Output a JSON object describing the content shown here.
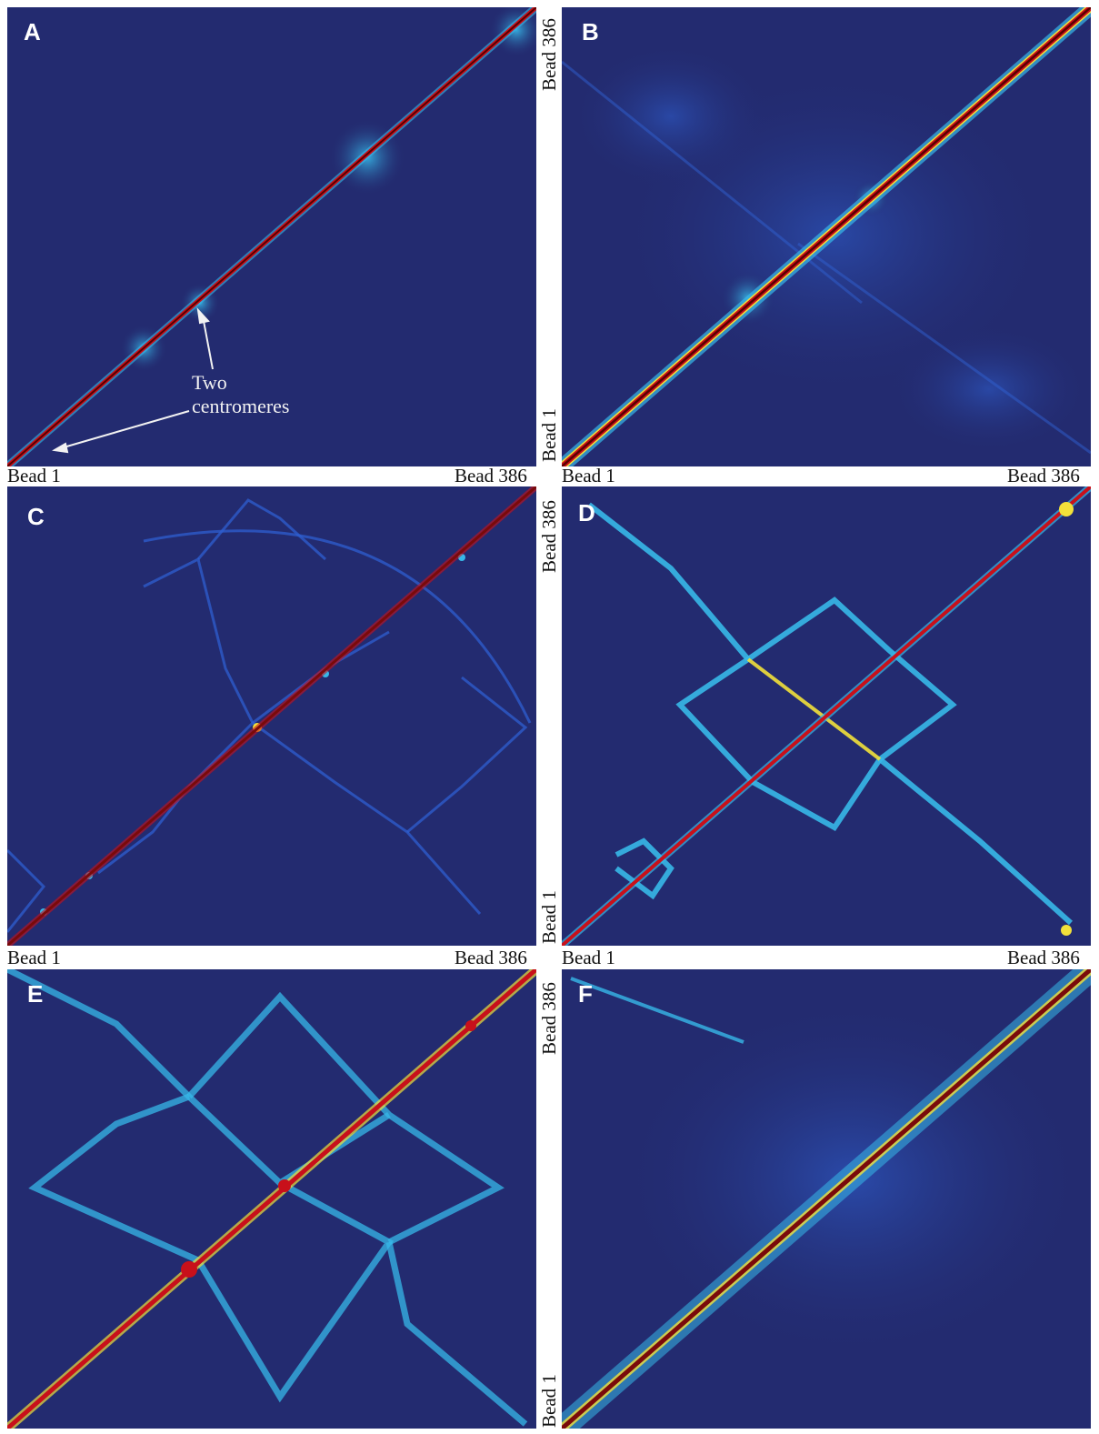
{
  "chart_data": [
    {
      "type": "heatmap",
      "panel": "A",
      "xlabel_start": "Bead 1",
      "xlabel_end": "Bead 386",
      "ylabel_start": "",
      "ylabel_end": "",
      "annotation": [
        "Two",
        "centromeres"
      ],
      "colorscale": [
        "#232b70",
        "#2f5fd0",
        "#37b8e8",
        "#f2e13a",
        "#c8101a",
        "#5a0000"
      ]
    },
    {
      "type": "heatmap",
      "panel": "B",
      "xlabel_start": "Bead 1",
      "xlabel_end": "Bead 386",
      "ylabel_start": "Bead 1",
      "ylabel_end": "Bead 386"
    },
    {
      "type": "heatmap",
      "panel": "C",
      "xlabel_start": "Bead 1",
      "xlabel_end": "Bead 386",
      "ylabel_start": "",
      "ylabel_end": ""
    },
    {
      "type": "heatmap",
      "panel": "D",
      "xlabel_start": "Bead 1",
      "xlabel_end": "Bead 386",
      "ylabel_start": "Bead 1",
      "ylabel_end": "Bead 386"
    },
    {
      "type": "heatmap",
      "panel": "E",
      "xlabel_start": "",
      "xlabel_end": "",
      "ylabel_start": "",
      "ylabel_end": ""
    },
    {
      "type": "heatmap",
      "panel": "F",
      "xlabel_start": "",
      "xlabel_end": "",
      "ylabel_start": "Bead 1",
      "ylabel_end": "Bead 386"
    }
  ],
  "panels": {
    "a": {
      "letter": "A",
      "bead_start": "Bead 1",
      "bead_end": "Bead 386",
      "annotation_line1": "Two",
      "annotation_line2": "centromeres"
    },
    "b": {
      "letter": "B",
      "bead_start": "Bead 1",
      "bead_end": "Bead 386"
    },
    "c": {
      "letter": "C",
      "bead_start": "Bead 1",
      "bead_end": "Bead 386"
    },
    "d": {
      "letter": "D",
      "bead_start": "Bead 1",
      "bead_end": "Bead 386"
    },
    "e": {
      "letter": "E"
    },
    "f": {
      "letter": "F",
      "bead_start": "Bead 1",
      "bead_end": "Bead 386"
    }
  },
  "colors": {
    "background": "#232b70",
    "low": "#2f5fd0",
    "mid": "#37b8e8",
    "high": "#f2e13a",
    "peak": "#c8101a",
    "diagonal": "#5a0000",
    "annotation": "#f2f2f2"
  }
}
